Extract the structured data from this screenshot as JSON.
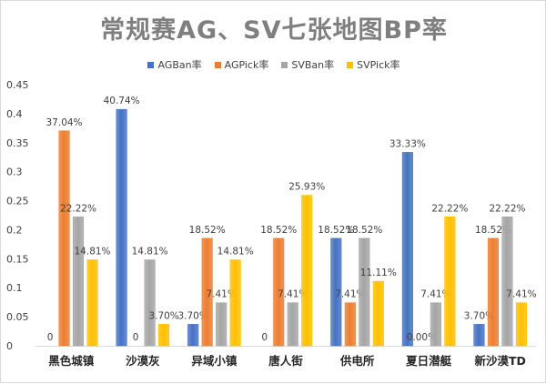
{
  "chart_data": {
    "type": "bar",
    "title": "常规赛AG、SV七张地图BP率",
    "categories": [
      "黑色城镇",
      "沙漠灰",
      "异域小镇",
      "唐人街",
      "供电所",
      "夏日潜艇",
      "新沙漠TD"
    ],
    "series": [
      {
        "name": "AGBan率",
        "color": "#4472c4",
        "values": [
          0,
          0.4074,
          0.037,
          0,
          0.1852,
          0.3333,
          0.037
        ],
        "labels": [
          "0",
          "40.74%",
          "3.70%",
          "0",
          "18.52%",
          "33.33%",
          "3.70%"
        ]
      },
      {
        "name": "AGPick率",
        "color": "#ed7d31",
        "values": [
          0.3704,
          0,
          0.1852,
          0.1852,
          0.0741,
          0,
          0.1852
        ],
        "labels": [
          "37.04%",
          "0",
          "18.52%",
          "18.52%",
          "7.41%",
          "0.00%",
          "18.52%"
        ]
      },
      {
        "name": "SVBan率",
        "color": "#a5a5a5",
        "values": [
          0.2222,
          0.1481,
          0.0741,
          0.0741,
          0.1852,
          0.0741,
          0.2222
        ],
        "labels": [
          "22.22%",
          "14.81%",
          "7.41%",
          "7.41%",
          "18.52%",
          "7.41%",
          "22.22%"
        ]
      },
      {
        "name": "SVPick率",
        "color": "#ffc000",
        "values": [
          0.1481,
          0.037,
          0.1481,
          0.2593,
          0.1111,
          0.2222,
          0.0741
        ],
        "labels": [
          "14.81%",
          "3.70%",
          "14.81%",
          "25.93%",
          "11.11%",
          "22.22%",
          "7.41%"
        ]
      }
    ],
    "yticks": [
      "0",
      "0.05",
      "0.1",
      "0.15",
      "0.2",
      "0.25",
      "0.3",
      "0.35",
      "0.4",
      "0.45"
    ],
    "ylim": [
      0,
      0.45
    ],
    "grid": false,
    "legend": "top-center"
  }
}
